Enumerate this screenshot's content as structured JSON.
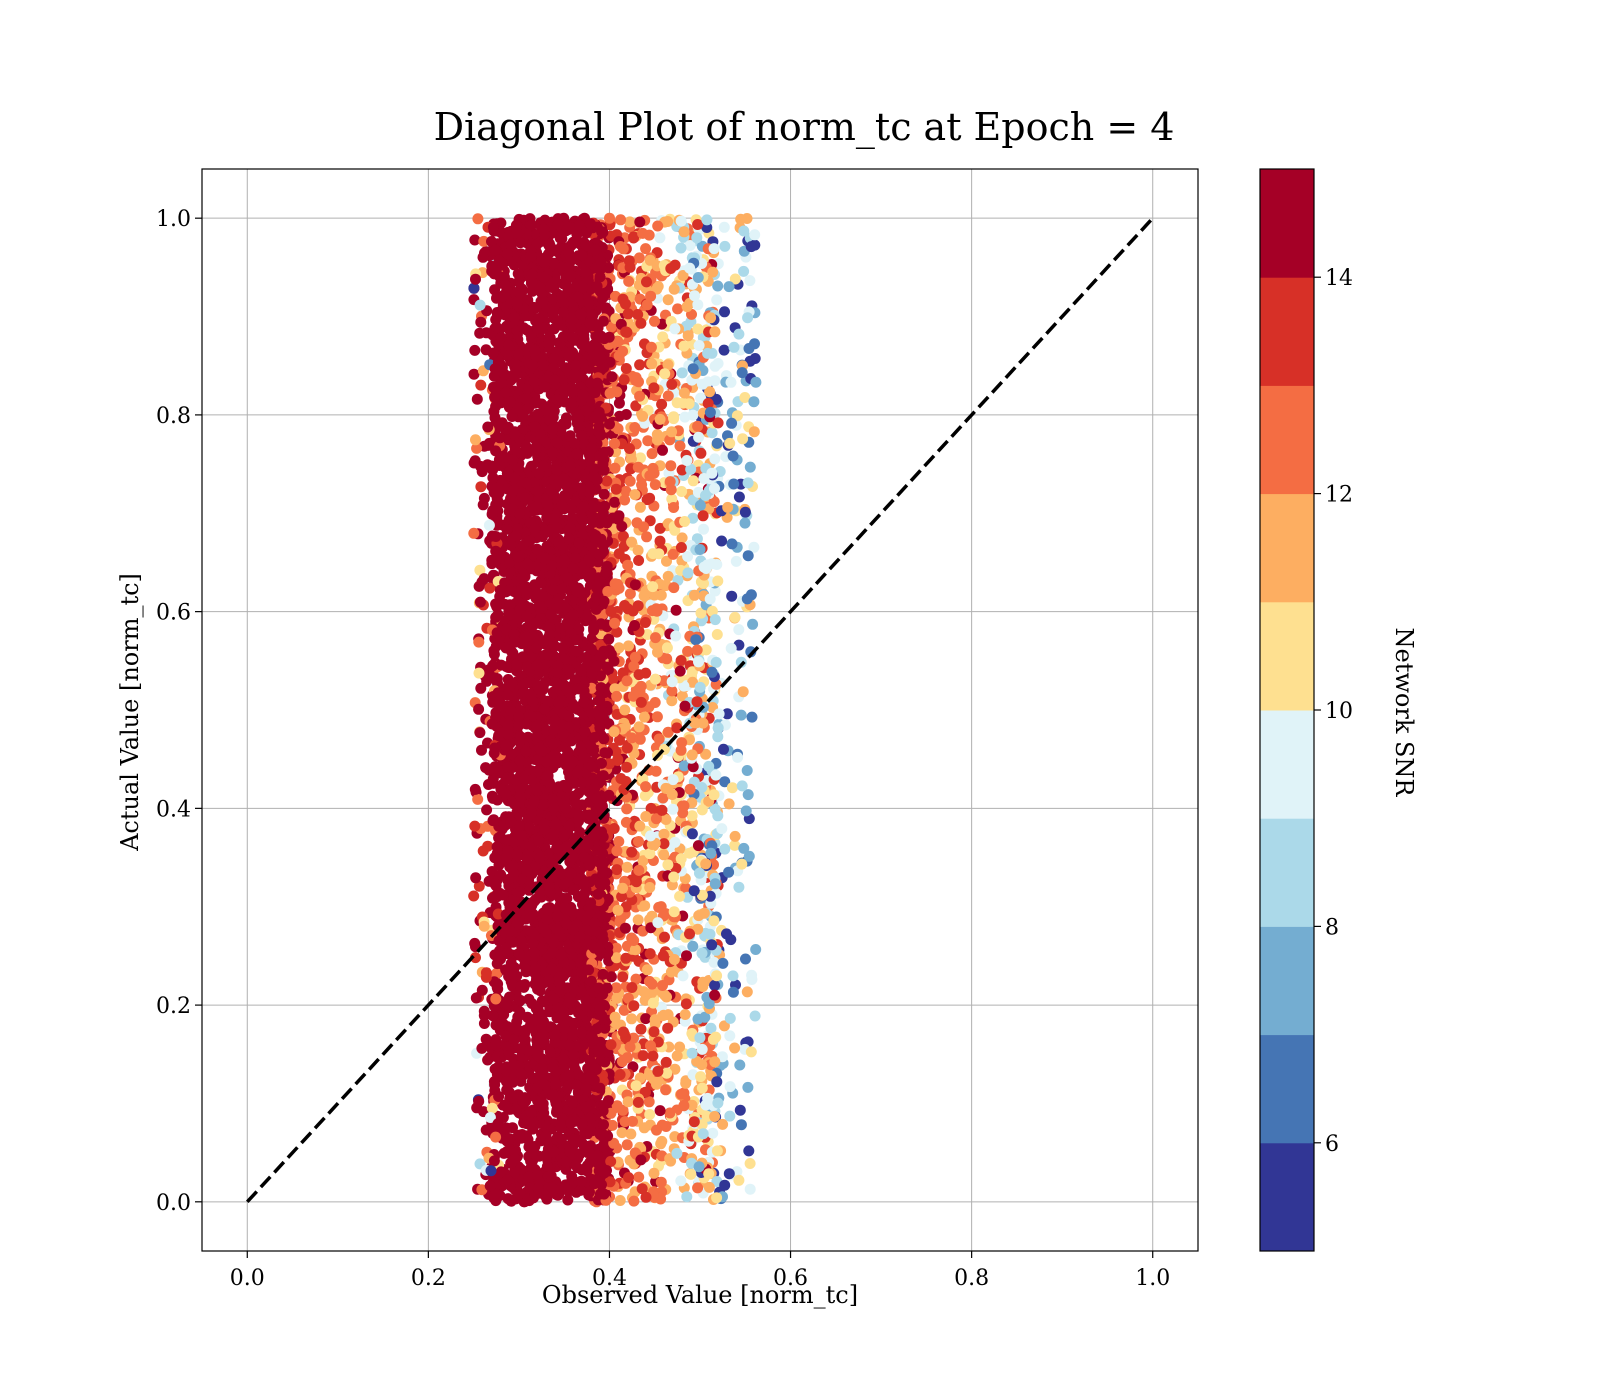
{
  "chart_data": {
    "type": "scatter",
    "title": "Diagonal Plot of norm_tc at Epoch = 4",
    "xlabel": "Observed Value [norm_tc]",
    "ylabel": "Actual Value [norm_tc]",
    "xlim": [
      -0.05,
      1.05
    ],
    "ylim": [
      -0.05,
      1.05
    ],
    "xticks": [
      "0.0",
      "0.2",
      "0.4",
      "0.6",
      "0.8",
      "1.0"
    ],
    "yticks": [
      "0.0",
      "0.2",
      "0.4",
      "0.6",
      "0.8",
      "1.0"
    ],
    "grid": true,
    "diagonal_line": {
      "x": [
        0.0,
        1.0
      ],
      "y": [
        0.0,
        1.0
      ],
      "style": "dashed",
      "color": "#000000"
    },
    "point_cloud": {
      "x_range": [
        0.25,
        0.58
      ],
      "y_range": [
        0.0,
        1.0
      ],
      "dense_core_x_range": [
        0.27,
        0.4
      ],
      "color_by": "Network SNR"
    },
    "colorbar": {
      "label": "Network SNR",
      "range": [
        5,
        15
      ],
      "ticks": [
        "6",
        "8",
        "10",
        "12",
        "14"
      ],
      "colors": [
        "#313695",
        "#4575b4",
        "#74add1",
        "#abd9e9",
        "#e0f3f8",
        "#fee090",
        "#fdae61",
        "#f46d43",
        "#d73027",
        "#a50026"
      ]
    }
  }
}
